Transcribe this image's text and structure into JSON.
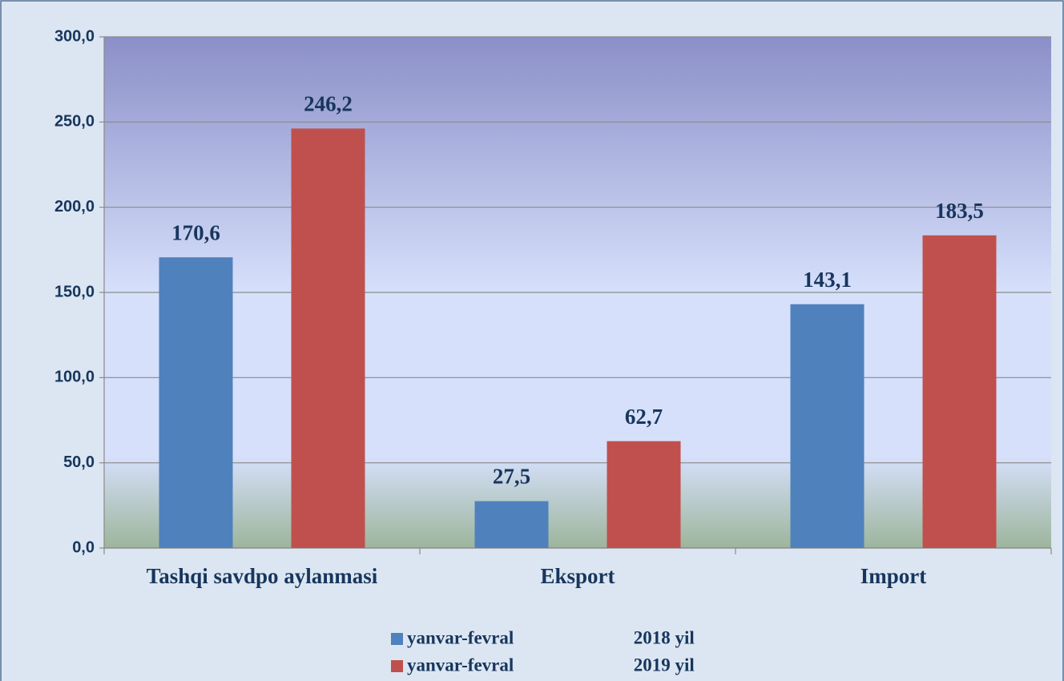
{
  "chart_data": {
    "type": "bar",
    "categories": [
      "Tashqi savdpo aylanmasi",
      "Eksport",
      "Import"
    ],
    "series": [
      {
        "name": "yanvar-fevral                          2018 yil",
        "color": "#4f81bd",
        "values": [
          170.6,
          27.5,
          143.1
        ],
        "value_labels": [
          "170,6",
          "27,5",
          "143,1"
        ]
      },
      {
        "name": "yanvar-fevral                          2019 yil",
        "color": "#c0504d",
        "values": [
          246.2,
          62.7,
          183.5
        ],
        "value_labels": [
          "246,2",
          "62,7",
          "183,5"
        ]
      }
    ],
    "ylim": [
      0,
      300
    ],
    "yticks": [
      {
        "value": 0,
        "label": "0,0"
      },
      {
        "value": 50,
        "label": "50,0"
      },
      {
        "value": 100,
        "label": "100,0"
      },
      {
        "value": 150,
        "label": "150,0"
      },
      {
        "value": 200,
        "label": "200,0"
      },
      {
        "value": 250,
        "label": "250,0"
      },
      {
        "value": 300,
        "label": "300,0"
      }
    ],
    "grid": true,
    "legend": "bottom"
  }
}
